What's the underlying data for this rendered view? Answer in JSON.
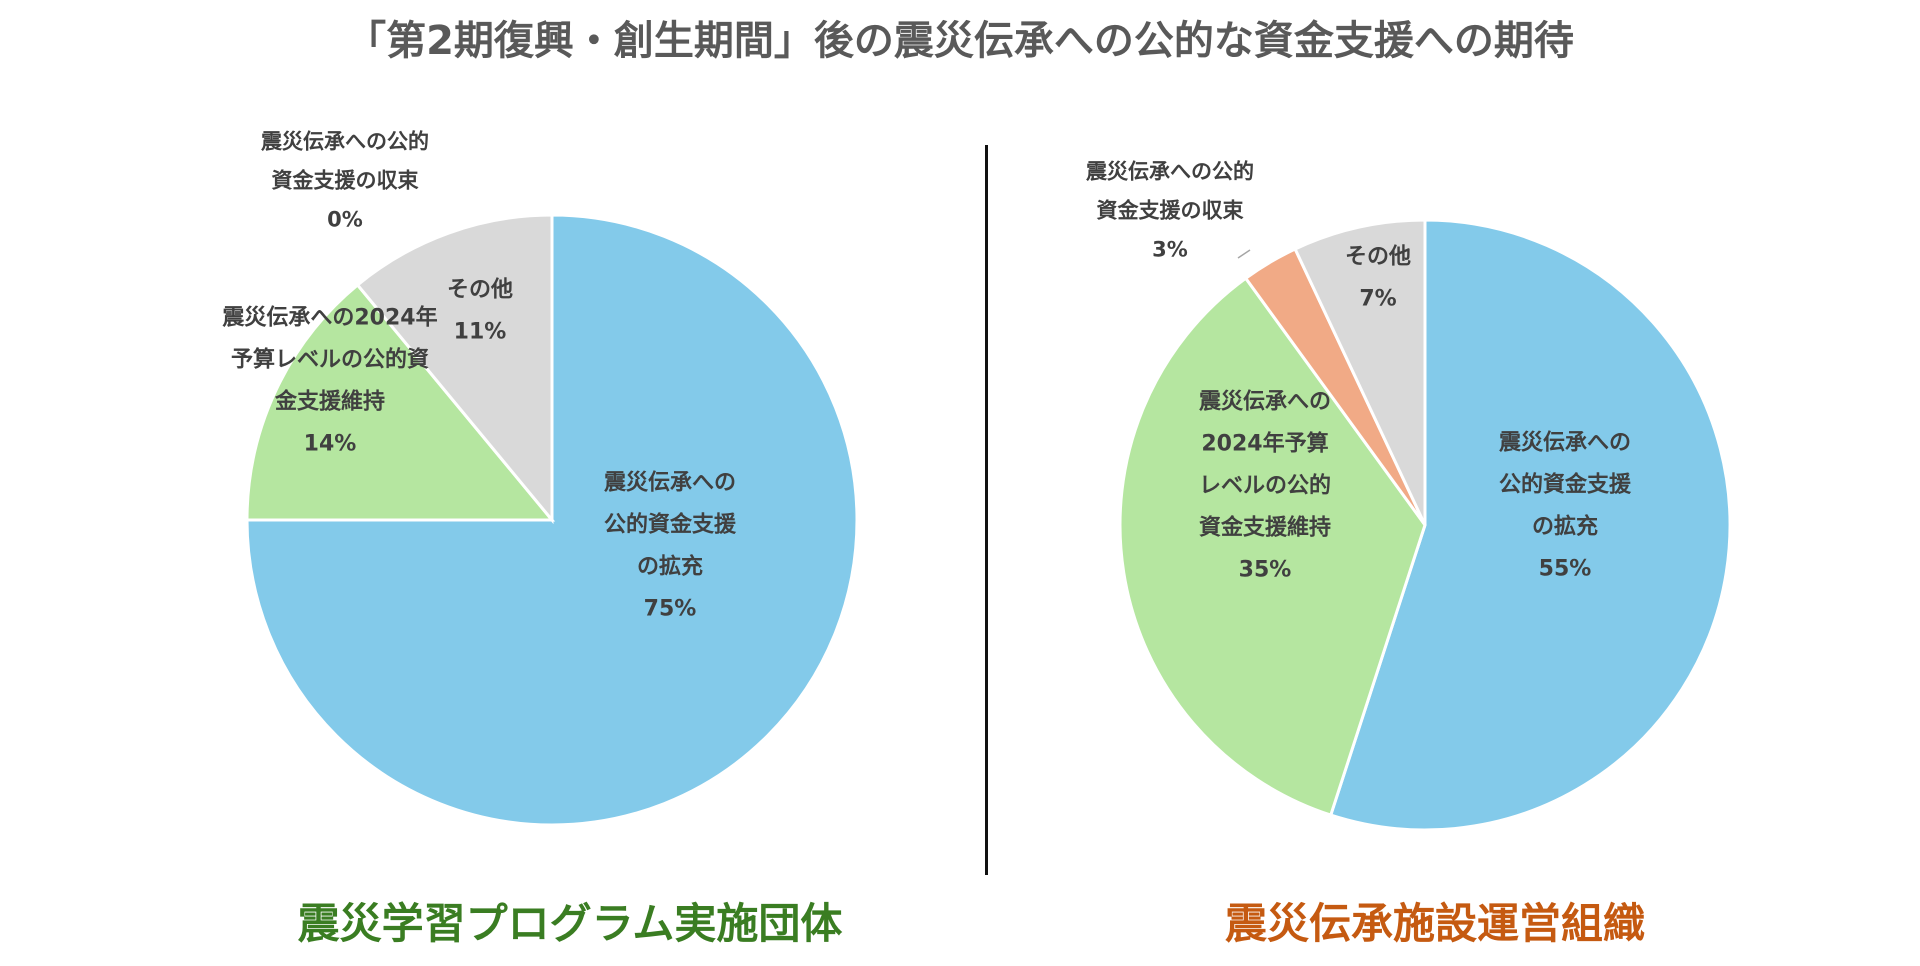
{
  "title": "「第2期復興・創生期間」後の震災伝承への公的な資金支援への期待",
  "colors": {
    "title": "#595959",
    "left_subtitle": "#3a7d22",
    "right_subtitle": "#c55a11",
    "expand": "#83caea",
    "maintain": "#b5e6a0",
    "end": "#f1aa86",
    "other": "#d9d9d9"
  },
  "chart_data": [
    {
      "type": "pie",
      "title": "震災学習プログラム実施団体",
      "slices": [
        {
          "label_lines": [
            "震災伝承への",
            "公的資金支援",
            "の拡充"
          ],
          "value": 75,
          "value_label": "75%",
          "color": "#83caea"
        },
        {
          "label_lines": [
            "震災伝承への2024年",
            "予算レベルの公的資",
            "金支援維持"
          ],
          "value": 14,
          "value_label": "14%",
          "color": "#b5e6a0"
        },
        {
          "label_lines": [
            "震災伝承への公的",
            "資金支援の収束"
          ],
          "value": 0,
          "value_label": "0%",
          "color": "#f1aa86"
        },
        {
          "label_lines": [
            "その他"
          ],
          "value": 11,
          "value_label": "11%",
          "color": "#d9d9d9"
        }
      ]
    },
    {
      "type": "pie",
      "title": "震災伝承施設運営組織",
      "slices": [
        {
          "label_lines": [
            "震災伝承への",
            "公的資金支援",
            "の拡充"
          ],
          "value": 55,
          "value_label": "55%",
          "color": "#83caea"
        },
        {
          "label_lines": [
            "震災伝承への",
            "2024年予算",
            "レベルの公的",
            "資金支援維持"
          ],
          "value": 35,
          "value_label": "35%",
          "color": "#b5e6a0"
        },
        {
          "label_lines": [
            "震災伝承への公的",
            "資金支援の収束"
          ],
          "value": 3,
          "value_label": "3%",
          "color": "#f1aa86"
        },
        {
          "label_lines": [
            "その他"
          ],
          "value": 7,
          "value_label": "7%",
          "color": "#d9d9d9"
        }
      ]
    }
  ]
}
